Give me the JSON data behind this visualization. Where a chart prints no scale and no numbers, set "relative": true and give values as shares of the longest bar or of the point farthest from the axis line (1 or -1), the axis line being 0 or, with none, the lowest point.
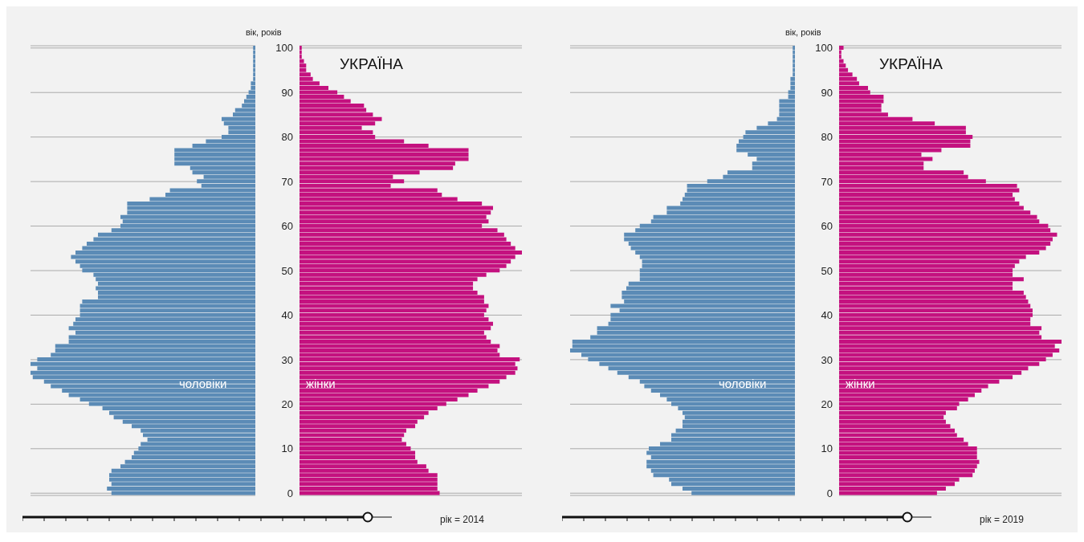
{
  "chart_data": [
    {
      "type": "bar",
      "orientation": "horizontal",
      "relative": true,
      "grid": "y",
      "tick_labels": false,
      "categories": [
        "100",
        null,
        null,
        null,
        null,
        null,
        null,
        null,
        null,
        null,
        "90",
        null,
        null,
        null,
        null,
        null,
        null,
        null,
        null,
        null,
        "80",
        null,
        null,
        null,
        null,
        null,
        null,
        null,
        null,
        null,
        "70",
        null,
        null,
        null,
        null,
        null,
        null,
        null,
        null,
        null,
        "60",
        null,
        null,
        null,
        null,
        null,
        null,
        null,
        null,
        null,
        "50",
        null,
        null,
        null,
        null,
        null,
        null,
        null,
        null,
        null,
        "40",
        null,
        null,
        null,
        null,
        null,
        null,
        null,
        null,
        null,
        "30",
        null,
        null,
        null,
        null,
        null,
        null,
        null,
        null,
        null,
        "20",
        null,
        null,
        null,
        null,
        null,
        null,
        null,
        null,
        null,
        "10",
        null,
        null,
        null,
        null,
        null,
        null,
        null,
        null,
        null,
        "0"
      ],
      "series": [
        {
          "name": "чоловіки",
          "color": "#5b8bb6",
          "values": [
            -0.01,
            -0.01,
            -0.01,
            -0.01,
            -0.01,
            -0.01,
            -0.01,
            -0.01,
            -0.02,
            -0.02,
            -0.03,
            -0.04,
            -0.05,
            -0.06,
            -0.09,
            -0.1,
            -0.15,
            -0.14,
            -0.12,
            -0.12,
            -0.15,
            -0.22,
            -0.28,
            -0.36,
            -0.36,
            -0.36,
            -0.36,
            -0.29,
            -0.28,
            -0.23,
            -0.26,
            -0.24,
            -0.38,
            -0.4,
            -0.47,
            -0.57,
            -0.57,
            -0.57,
            -0.6,
            -0.59,
            -0.6,
            -0.64,
            -0.7,
            -0.72,
            -0.75,
            -0.77,
            -0.8,
            -0.82,
            -0.8,
            -0.78,
            -0.77,
            -0.72,
            -0.71,
            -0.7,
            -0.71,
            -0.7,
            -0.7,
            -0.77,
            -0.78,
            -0.78,
            -0.78,
            -0.8,
            -0.81,
            -0.83,
            -0.8,
            -0.83,
            -0.83,
            -0.89,
            -0.89,
            -0.91,
            -0.97,
            -1,
            -0.97,
            -1,
            -0.99,
            -0.94,
            -0.91,
            -0.86,
            -0.83,
            -0.78,
            -0.74,
            -0.68,
            -0.65,
            -0.63,
            -0.59,
            -0.55,
            -0.51,
            -0.5,
            -0.48,
            -0.51,
            -0.52,
            -0.54,
            -0.55,
            -0.58,
            -0.6,
            -0.64,
            -0.65,
            -0.65,
            -0.64,
            -0.66,
            -0.64
          ]
        }
      ]
    },
    {
      "type": "bar",
      "orientation": "horizontal",
      "relative": true,
      "title": "УКРАЇНА",
      "ylabel": "вік, років",
      "grid": "y",
      "annotations": [
        "рік = 2014"
      ],
      "categories": [
        "100",
        null,
        null,
        null,
        null,
        null,
        null,
        null,
        null,
        null,
        "90",
        null,
        null,
        null,
        null,
        null,
        null,
        null,
        null,
        null,
        "80",
        null,
        null,
        null,
        null,
        null,
        null,
        null,
        null,
        null,
        "70",
        null,
        null,
        null,
        null,
        null,
        null,
        null,
        null,
        null,
        "60",
        null,
        null,
        null,
        null,
        null,
        null,
        null,
        null,
        null,
        "50",
        null,
        null,
        null,
        null,
        null,
        null,
        null,
        null,
        null,
        "40",
        null,
        null,
        null,
        null,
        null,
        null,
        null,
        null,
        null,
        "30",
        null,
        null,
        null,
        null,
        null,
        null,
        null,
        null,
        null,
        "20",
        null,
        null,
        null,
        null,
        null,
        null,
        null,
        null,
        null,
        "10",
        null,
        null,
        null,
        null,
        null,
        null,
        null,
        null,
        null,
        "0"
      ],
      "series": [
        {
          "name": "жінки",
          "color": "#c4117f",
          "values": [
            0.01,
            0.01,
            0.01,
            0.02,
            0.03,
            0.03,
            0.05,
            0.06,
            0.09,
            0.13,
            0.17,
            0.2,
            0.23,
            0.29,
            0.3,
            0.33,
            0.37,
            0.34,
            0.28,
            0.33,
            0.34,
            0.47,
            0.58,
            0.76,
            0.76,
            0.76,
            0.7,
            0.69,
            0.54,
            0.42,
            0.47,
            0.41,
            0.62,
            0.64,
            0.71,
            0.82,
            0.87,
            0.86,
            0.84,
            0.85,
            0.82,
            0.89,
            0.92,
            0.93,
            0.95,
            0.97,
            1,
            0.97,
            0.95,
            0.93,
            0.9,
            0.84,
            0.8,
            0.78,
            0.78,
            0.8,
            0.83,
            0.83,
            0.85,
            0.84,
            0.83,
            0.85,
            0.87,
            0.86,
            0.83,
            0.84,
            0.86,
            0.9,
            0.89,
            0.9,
            0.99,
            0.97,
            0.98,
            0.97,
            0.93,
            0.9,
            0.85,
            0.8,
            0.76,
            0.71,
            0.66,
            0.62,
            0.58,
            0.56,
            0.53,
            0.52,
            0.48,
            0.47,
            0.46,
            0.48,
            0.5,
            0.52,
            0.52,
            0.53,
            0.57,
            0.58,
            0.62,
            0.62,
            0.62,
            0.62,
            0.63
          ]
        }
      ]
    },
    {
      "type": "bar",
      "orientation": "horizontal",
      "relative": true,
      "grid": "y",
      "tick_labels": false,
      "categories": [
        "100",
        null,
        null,
        null,
        null,
        null,
        null,
        null,
        null,
        null,
        "90",
        null,
        null,
        null,
        null,
        null,
        null,
        null,
        null,
        null,
        "80",
        null,
        null,
        null,
        null,
        null,
        null,
        null,
        null,
        null,
        "70",
        null,
        null,
        null,
        null,
        null,
        null,
        null,
        null,
        null,
        "60",
        null,
        null,
        null,
        null,
        null,
        null,
        null,
        null,
        null,
        "50",
        null,
        null,
        null,
        null,
        null,
        null,
        null,
        null,
        null,
        "40",
        null,
        null,
        null,
        null,
        null,
        null,
        null,
        null,
        null,
        "30",
        null,
        null,
        null,
        null,
        null,
        null,
        null,
        null,
        null,
        "20",
        null,
        null,
        null,
        null,
        null,
        null,
        null,
        null,
        null,
        "10",
        null,
        null,
        null,
        null,
        null,
        null,
        null,
        null,
        null,
        "0"
      ],
      "series": [
        {
          "name": "чоловіки",
          "color": "#5b8bb6",
          "values": [
            -0.01,
            -0.01,
            -0.01,
            -0.01,
            -0.01,
            -0.01,
            -0.01,
            -0.02,
            -0.02,
            -0.02,
            -0.03,
            -0.03,
            -0.07,
            -0.07,
            -0.07,
            -0.07,
            -0.08,
            -0.12,
            -0.17,
            -0.22,
            -0.23,
            -0.25,
            -0.26,
            -0.26,
            -0.21,
            -0.17,
            -0.19,
            -0.19,
            -0.3,
            -0.32,
            -0.39,
            -0.48,
            -0.48,
            -0.49,
            -0.5,
            -0.51,
            -0.57,
            -0.57,
            -0.63,
            -0.64,
            -0.69,
            -0.71,
            -0.76,
            -0.76,
            -0.74,
            -0.73,
            -0.71,
            -0.69,
            -0.68,
            -0.68,
            -0.69,
            -0.69,
            -0.69,
            -0.74,
            -0.75,
            -0.77,
            -0.77,
            -0.76,
            -0.82,
            -0.78,
            -0.82,
            -0.82,
            -0.83,
            -0.88,
            -0.88,
            -0.91,
            -0.99,
            -0.99,
            -1,
            -0.95,
            -0.92,
            -0.87,
            -0.83,
            -0.79,
            -0.74,
            -0.69,
            -0.67,
            -0.64,
            -0.6,
            -0.57,
            -0.55,
            -0.52,
            -0.5,
            -0.49,
            -0.5,
            -0.5,
            -0.53,
            -0.55,
            -0.55,
            -0.6,
            -0.65,
            -0.66,
            -0.64,
            -0.66,
            -0.66,
            -0.64,
            -0.63,
            -0.56,
            -0.55,
            -0.5,
            -0.46
          ]
        }
      ]
    },
    {
      "type": "bar",
      "orientation": "horizontal",
      "relative": true,
      "title": "УКРАЇНА",
      "ylabel": "вік, років",
      "grid": "y",
      "annotations": [
        "рік = 2019"
      ],
      "categories": [
        "100",
        null,
        null,
        null,
        null,
        null,
        null,
        null,
        null,
        null,
        "90",
        null,
        null,
        null,
        null,
        null,
        null,
        null,
        null,
        null,
        "80",
        null,
        null,
        null,
        null,
        null,
        null,
        null,
        null,
        null,
        "70",
        null,
        null,
        null,
        null,
        null,
        null,
        null,
        null,
        null,
        "60",
        null,
        null,
        null,
        null,
        null,
        null,
        null,
        null,
        null,
        "50",
        null,
        null,
        null,
        null,
        null,
        null,
        null,
        null,
        null,
        "40",
        null,
        null,
        null,
        null,
        null,
        null,
        null,
        null,
        null,
        "30",
        null,
        null,
        null,
        null,
        null,
        null,
        null,
        null,
        null,
        "20",
        null,
        null,
        null,
        null,
        null,
        null,
        null,
        null,
        null,
        "10",
        null,
        null,
        null,
        null,
        null,
        null,
        null,
        null,
        null,
        "0"
      ],
      "series": [
        {
          "name": "жінки",
          "color": "#c4117f",
          "values": [
            0.02,
            0.01,
            0.01,
            0.02,
            0.03,
            0.04,
            0.06,
            0.08,
            0.09,
            0.13,
            0.14,
            0.2,
            0.2,
            0.19,
            0.19,
            0.22,
            0.33,
            0.43,
            0.57,
            0.57,
            0.6,
            0.59,
            0.59,
            0.46,
            0.37,
            0.42,
            0.38,
            0.38,
            0.56,
            0.58,
            0.66,
            0.8,
            0.81,
            0.78,
            0.79,
            0.81,
            0.83,
            0.86,
            0.89,
            0.9,
            0.94,
            0.95,
            0.98,
            0.96,
            0.95,
            0.93,
            0.9,
            0.84,
            0.81,
            0.79,
            0.78,
            0.78,
            0.83,
            0.78,
            0.78,
            0.83,
            0.84,
            0.85,
            0.86,
            0.87,
            0.87,
            0.86,
            0.86,
            0.91,
            0.9,
            0.91,
            1,
            0.97,
            0.99,
            0.96,
            0.93,
            0.9,
            0.85,
            0.82,
            0.78,
            0.72,
            0.67,
            0.64,
            0.61,
            0.58,
            0.54,
            0.53,
            0.48,
            0.47,
            0.48,
            0.5,
            0.52,
            0.53,
            0.56,
            0.58,
            0.62,
            0.62,
            0.62,
            0.63,
            0.62,
            0.61,
            0.6,
            0.54,
            0.52,
            0.48,
            0.44
          ]
        }
      ]
    }
  ]
}
